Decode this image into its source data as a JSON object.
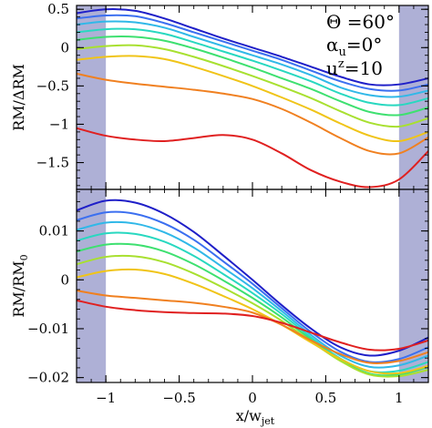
{
  "chart_data": [
    {
      "type": "line",
      "panel": "top",
      "ylabel": "RM/ΔRM",
      "xlim": [
        -1.2,
        1.2
      ],
      "ylim": [
        -1.85,
        0.55
      ],
      "yticks": [
        0.5,
        0,
        -0.5,
        -1,
        -1.5
      ],
      "ytick_labels": [
        "0.5",
        "0",
        "−0.5",
        "−1",
        "−1.5"
      ],
      "shaded_x_regions": [
        [
          -1.2,
          -1.0
        ],
        [
          1.0,
          1.2
        ]
      ],
      "shade_color": "#aeb0d6",
      "annotations": [
        {
          "part": "theta",
          "text": "Θ =60°"
        },
        {
          "part": "alpha",
          "text": "αu=0°"
        },
        {
          "part": "u",
          "text": "uz=10"
        }
      ],
      "x": [
        -1.2,
        -1.0,
        -0.8,
        -0.6,
        -0.4,
        -0.2,
        0.0,
        0.2,
        0.4,
        0.6,
        0.8,
        1.0,
        1.2
      ],
      "series": [
        {
          "color": "#1f1fc8",
          "values": [
            0.45,
            0.5,
            0.48,
            0.38,
            0.25,
            0.12,
            0.0,
            -0.12,
            -0.25,
            -0.38,
            -0.48,
            -0.48,
            -0.4
          ]
        },
        {
          "color": "#3b6ff0",
          "values": [
            0.38,
            0.42,
            0.41,
            0.32,
            0.2,
            0.08,
            -0.04,
            -0.16,
            -0.3,
            -0.44,
            -0.54,
            -0.56,
            -0.48
          ]
        },
        {
          "color": "#30b8e8",
          "values": [
            0.3,
            0.34,
            0.33,
            0.26,
            0.14,
            0.02,
            -0.1,
            -0.22,
            -0.36,
            -0.52,
            -0.62,
            -0.64,
            -0.56
          ]
        },
        {
          "color": "#28d8c0",
          "values": [
            0.2,
            0.24,
            0.24,
            0.18,
            0.07,
            -0.05,
            -0.17,
            -0.3,
            -0.44,
            -0.6,
            -0.72,
            -0.75,
            -0.66
          ]
        },
        {
          "color": "#3ee070",
          "values": [
            0.1,
            0.14,
            0.14,
            0.09,
            -0.01,
            -0.13,
            -0.26,
            -0.4,
            -0.54,
            -0.7,
            -0.84,
            -0.88,
            -0.78
          ]
        },
        {
          "color": "#a8e030",
          "values": [
            -0.02,
            0.02,
            0.03,
            -0.02,
            -0.12,
            -0.24,
            -0.37,
            -0.51,
            -0.66,
            -0.83,
            -0.98,
            -1.03,
            -0.92
          ]
        },
        {
          "color": "#f0c418",
          "values": [
            -0.16,
            -0.12,
            -0.11,
            -0.15,
            -0.25,
            -0.37,
            -0.5,
            -0.65,
            -0.81,
            -0.99,
            -1.15,
            -1.22,
            -1.1
          ]
        },
        {
          "color": "#f08020",
          "values": [
            -0.34,
            -0.42,
            -0.47,
            -0.51,
            -0.55,
            -0.6,
            -0.67,
            -0.8,
            -0.98,
            -1.18,
            -1.35,
            -1.38,
            -1.17
          ]
        },
        {
          "color": "#e02020",
          "values": [
            -1.05,
            -1.15,
            -1.2,
            -1.22,
            -1.18,
            -1.14,
            -1.2,
            -1.38,
            -1.6,
            -1.75,
            -1.82,
            -1.72,
            -1.35
          ]
        }
      ]
    },
    {
      "type": "line",
      "panel": "bottom",
      "ylabel": "RM/RM0",
      "xlabel": "x/wjet",
      "xlim": [
        -1.2,
        1.2
      ],
      "ylim": [
        -0.021,
        0.0185
      ],
      "xticks": [
        -1,
        -0.5,
        0,
        0.5,
        1
      ],
      "xtick_labels": [
        "−1",
        "−0.5",
        "0",
        "0.5",
        "1"
      ],
      "yticks": [
        0.01,
        0,
        -0.01,
        -0.02
      ],
      "ytick_labels": [
        "0.01",
        "0",
        "−0.01",
        "−0.02"
      ],
      "shaded_x_regions": [
        [
          -1.2,
          -1.0
        ],
        [
          1.0,
          1.2
        ]
      ],
      "shade_color": "#aeb0d6",
      "x": [
        -1.2,
        -1.0,
        -0.8,
        -0.6,
        -0.4,
        -0.2,
        0.0,
        0.2,
        0.4,
        0.6,
        0.8,
        1.0,
        1.2
      ],
      "series": [
        {
          "color": "#1f1fc8",
          "values": [
            0.0142,
            0.0162,
            0.0158,
            0.0135,
            0.0098,
            0.005,
            0.0,
            -0.0052,
            -0.01,
            -0.0138,
            -0.0155,
            -0.0145,
            -0.0118
          ]
        },
        {
          "color": "#3b6ff0",
          "values": [
            0.0122,
            0.0138,
            0.0135,
            0.0115,
            0.0082,
            0.0038,
            -0.0008,
            -0.0058,
            -0.0107,
            -0.0147,
            -0.0168,
            -0.0162,
            -0.0138
          ]
        },
        {
          "color": "#30b8e8",
          "values": [
            0.0102,
            0.0117,
            0.0115,
            0.0097,
            0.0066,
            0.0025,
            -0.0017,
            -0.0064,
            -0.0113,
            -0.0155,
            -0.0178,
            -0.0175,
            -0.0155
          ]
        },
        {
          "color": "#28d8c0",
          "values": [
            0.008,
            0.0095,
            0.0094,
            0.0078,
            0.0049,
            0.0012,
            -0.0027,
            -0.007,
            -0.0118,
            -0.0161,
            -0.0187,
            -0.0186,
            -0.0168
          ]
        },
        {
          "color": "#3ee070",
          "values": [
            0.0058,
            0.0072,
            0.0072,
            0.0058,
            0.0032,
            -0.0001,
            -0.0037,
            -0.0077,
            -0.0122,
            -0.0164,
            -0.0192,
            -0.0194,
            -0.0178
          ]
        },
        {
          "color": "#a8e030",
          "values": [
            0.0032,
            0.0047,
            0.0048,
            0.0036,
            0.0013,
            -0.0016,
            -0.0048,
            -0.0084,
            -0.0126,
            -0.0166,
            -0.0194,
            -0.0197,
            -0.0184
          ]
        },
        {
          "color": "#f0c418",
          "values": [
            0.0005,
            0.0018,
            0.0021,
            0.0012,
            -0.0008,
            -0.0033,
            -0.006,
            -0.0092,
            -0.0128,
            -0.0162,
            -0.0187,
            -0.0191,
            -0.0176
          ]
        },
        {
          "color": "#f08020",
          "values": [
            -0.0022,
            -0.0032,
            -0.0037,
            -0.0042,
            -0.0047,
            -0.0055,
            -0.0067,
            -0.0092,
            -0.0124,
            -0.0152,
            -0.017,
            -0.0166,
            -0.0148
          ]
        },
        {
          "color": "#e02020",
          "values": [
            -0.0042,
            -0.0055,
            -0.0062,
            -0.0066,
            -0.0068,
            -0.0069,
            -0.0074,
            -0.0088,
            -0.0108,
            -0.0128,
            -0.0143,
            -0.0141,
            -0.0124
          ]
        }
      ]
    }
  ]
}
